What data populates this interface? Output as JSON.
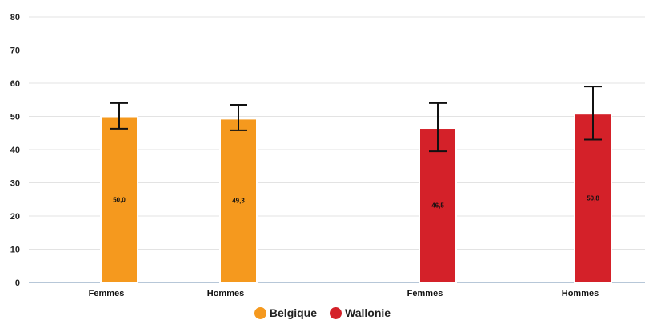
{
  "chart_data": {
    "type": "bar",
    "categories": [
      "Femmes",
      "Hommes",
      "Femmes",
      "Hommes"
    ],
    "groups": [
      "Belgique",
      "Belgique",
      "Wallonie",
      "Wallonie"
    ],
    "values": [
      50.0,
      49.3,
      46.5,
      50.8
    ],
    "value_labels": [
      "50,0",
      "49,3",
      "46,5",
      "50,8"
    ],
    "error_low": [
      46.3,
      45.8,
      39.5,
      43.0
    ],
    "error_high": [
      54.0,
      53.5,
      54.0,
      59.0
    ],
    "ylim": [
      0,
      80
    ],
    "yticks": [
      0,
      10,
      20,
      30,
      40,
      50,
      60,
      70,
      80
    ],
    "grid": true,
    "legend_position": "bottom-center",
    "legend": [
      {
        "name": "Belgique",
        "color": "#F5991E"
      },
      {
        "name": "Wallonie",
        "color": "#D42129"
      }
    ],
    "title": "",
    "xlabel": "",
    "ylabel": ""
  }
}
